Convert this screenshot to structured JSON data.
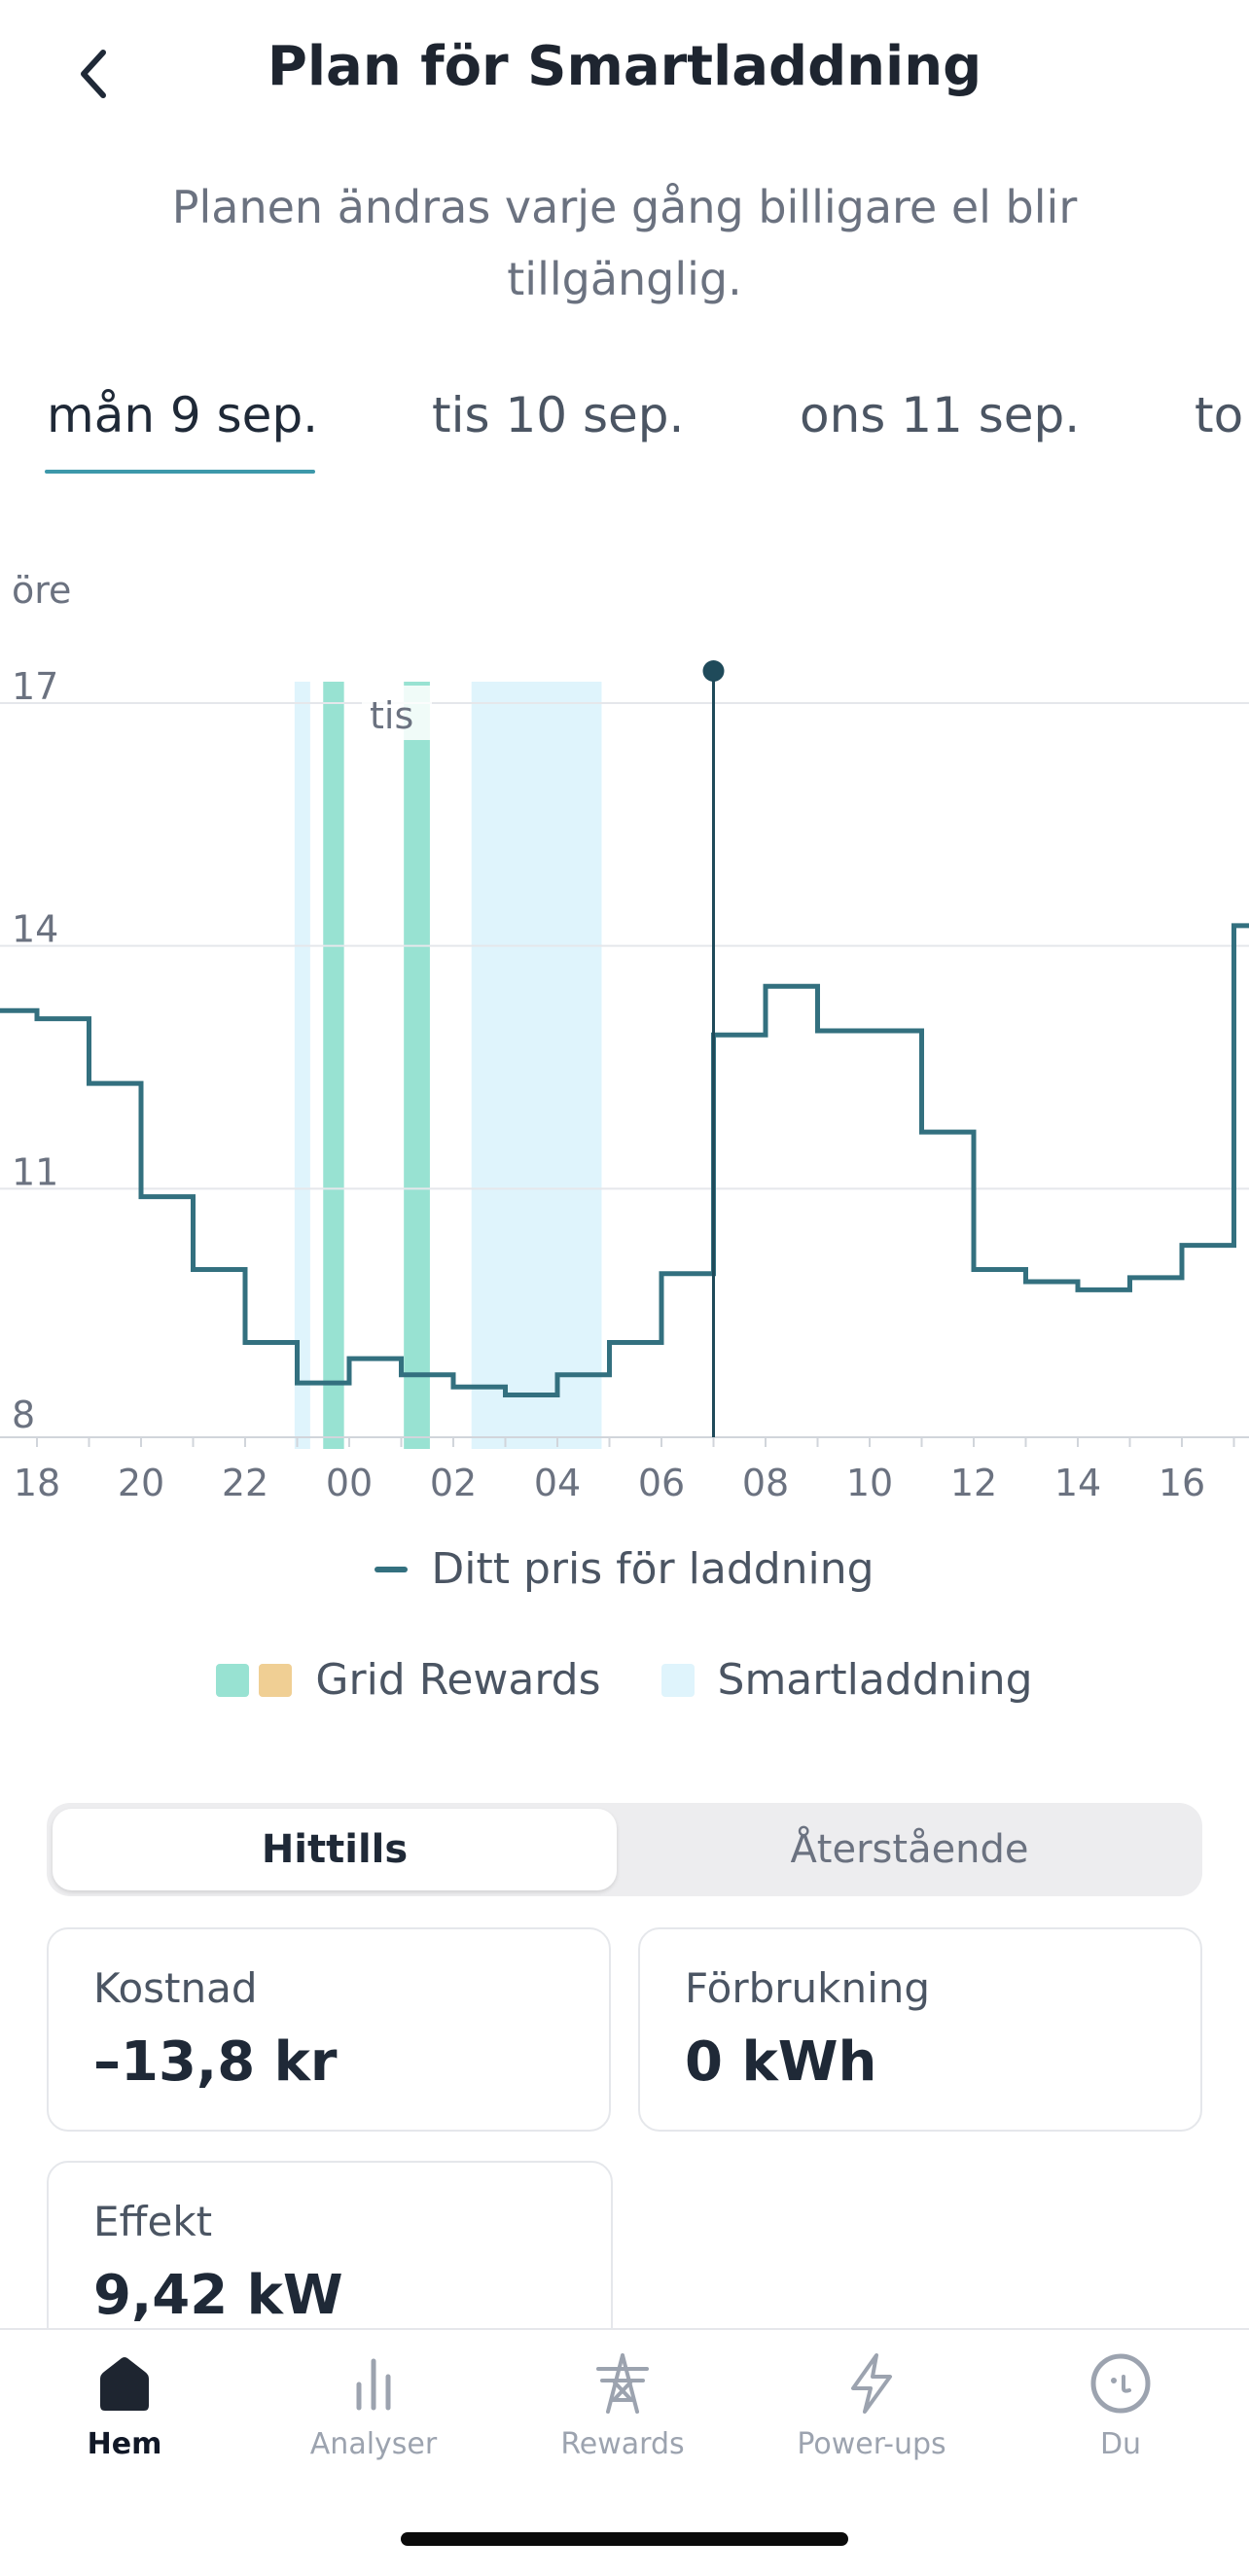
{
  "header": {
    "title": "Plan för Smartladdning",
    "subtitle": "Planen ändras varje gång billigare el blir tillgänglig."
  },
  "tabs": [
    {
      "label": "mån 9 sep.",
      "active": true
    },
    {
      "label": "tis 10 sep.",
      "active": false
    },
    {
      "label": "ons 11 sep.",
      "active": false
    },
    {
      "label": "to",
      "active": false
    }
  ],
  "chart_data": {
    "type": "line",
    "step": true,
    "ylabel": "öre",
    "ylim": [
      8,
      17
    ],
    "yticks": [
      8,
      11,
      14,
      17
    ],
    "xlabels": [
      "18",
      "20",
      "22",
      "00",
      "02",
      "04",
      "06",
      "08",
      "10",
      "12",
      "14",
      "16"
    ],
    "day_marker": "tis",
    "current_time_hour": 7,
    "series": [
      {
        "name": "Ditt pris för laddning",
        "color": "#33707f",
        "hours": [
          17,
          18,
          19,
          20,
          21,
          22,
          23,
          24,
          25,
          26,
          27,
          28,
          29,
          30,
          31,
          32,
          33,
          34,
          35,
          36,
          37,
          38,
          39,
          40,
          41
        ],
        "values": [
          13.2,
          13.1,
          12.3,
          10.9,
          10.0,
          9.1,
          8.6,
          8.9,
          8.7,
          8.55,
          8.45,
          8.7,
          9.1,
          9.95,
          12.9,
          13.5,
          12.95,
          12.95,
          11.7,
          10.0,
          9.85,
          9.75,
          9.9,
          10.3,
          14.25
        ]
      }
    ],
    "grid_rewards_hours": [
      [
        23.5,
        23.9
      ],
      [
        25.05,
        25.55
      ]
    ],
    "smartladdning_hours": [
      [
        22.95,
        23.25
      ],
      [
        26.35,
        28.85
      ]
    ],
    "legend_line": "Ditt pris för laddning",
    "legend_areas": [
      {
        "label": "Grid Rewards",
        "colors": [
          "#98e2d2",
          "#f0cf94"
        ]
      },
      {
        "label": "Smartladdning",
        "colors": [
          "#dff4fc"
        ]
      }
    ]
  },
  "segmented": {
    "active": "Hittills",
    "other": "Återstående"
  },
  "cards": {
    "kostnad": {
      "label": "Kostnad",
      "value": "–13,8 kr"
    },
    "forbrukning": {
      "label": "Förbrukning",
      "value": "0 kWh"
    },
    "effekt": {
      "label": "Effekt",
      "value": "9,42 kW"
    }
  },
  "nav": [
    {
      "label": "Hem",
      "icon": "home-icon",
      "active": true
    },
    {
      "label": "Analyser",
      "icon": "bar-chart-icon",
      "active": false
    },
    {
      "label": "Rewards",
      "icon": "pylon-icon",
      "active": false
    },
    {
      "label": "Power-ups",
      "icon": "lightning-icon",
      "active": false
    },
    {
      "label": "Du",
      "icon": "face-icon",
      "active": false
    }
  ],
  "colors": {
    "accent": "#3d98aa",
    "line": "#33707f",
    "grid_rewards": "#98e2d2",
    "smart": "#dff4fc"
  }
}
